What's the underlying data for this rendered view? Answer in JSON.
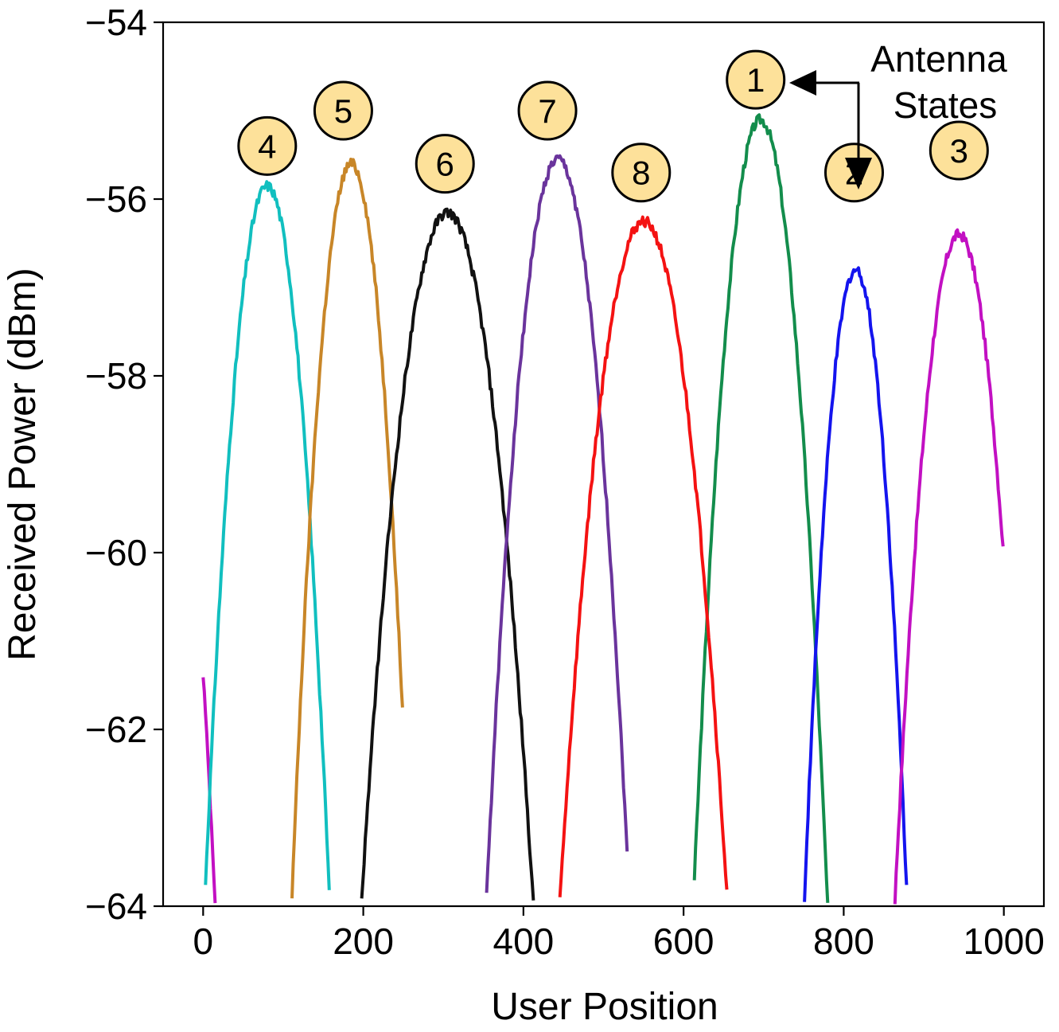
{
  "chart_data": {
    "type": "line",
    "xlabel": "User Position",
    "ylabel": "Received Power (dBm)",
    "xlim": [
      -50,
      1050
    ],
    "ylim": [
      -64,
      -54
    ],
    "xticks": [
      0,
      200,
      400,
      600,
      800,
      1000
    ],
    "yticks": [
      -54,
      -56,
      -58,
      -60,
      -62,
      -64
    ],
    "xtick_labels": [
      "0",
      "200",
      "400",
      "600",
      "800",
      "1000"
    ],
    "ytick_labels": [
      "−54",
      "−56",
      "−58",
      "−60",
      "−62",
      "−64"
    ],
    "grid": false,
    "annotation": {
      "line1": "Antenna",
      "line2": "States"
    },
    "series": [
      {
        "state": "1",
        "color": "#138d4c",
        "peak_x": 696,
        "peak_y": -55.1,
        "width": 82,
        "x_range": [
          600,
          790
        ]
      },
      {
        "state": "2",
        "color": "#1414ee",
        "peak_x": 815,
        "peak_y": -56.8,
        "width": 70,
        "x_range": [
          715,
          900
        ]
      },
      {
        "state": "3",
        "color": "#c210c2",
        "peak_x": 944,
        "peak_y": -56.4,
        "width": 85,
        "x_range": [
          840,
          1000
        ]
      },
      {
        "state": "3",
        "color": "#c210c2",
        "peak_x": -65,
        "peak_y": -56.4,
        "width": 85,
        "x_range": [
          0,
          30
        ]
      },
      {
        "state": "4",
        "color": "#11bfbf",
        "peak_x": 80,
        "peak_y": -55.85,
        "width": 80,
        "x_range": [
          0,
          160
        ]
      },
      {
        "state": "5",
        "color": "#c88628",
        "peak_x": 185,
        "peak_y": -55.6,
        "width": 75,
        "x_range": [
          90,
          250
        ]
      },
      {
        "state": "6",
        "color": "#111111",
        "peak_x": 305,
        "peak_y": -56.15,
        "width": 112,
        "x_range": [
          180,
          420
        ]
      },
      {
        "state": "7",
        "color": "#6a349c",
        "peak_x": 443,
        "peak_y": -55.55,
        "width": 90,
        "x_range": [
          330,
          530
        ]
      },
      {
        "state": "8",
        "color": "#f41212",
        "peak_x": 550,
        "peak_y": -56.25,
        "width": 110,
        "x_range": [
          420,
          670
        ]
      }
    ],
    "markers": [
      {
        "label": "1",
        "x": 690,
        "y": -54.65
      },
      {
        "label": "2",
        "x": 813,
        "y": -55.7
      },
      {
        "label": "3",
        "x": 944,
        "y": -55.45
      },
      {
        "label": "4",
        "x": 80,
        "y": -55.4
      },
      {
        "label": "5",
        "x": 175,
        "y": -55.0
      },
      {
        "label": "6",
        "x": 302,
        "y": -55.6
      },
      {
        "label": "7",
        "x": 430,
        "y": -55.0
      },
      {
        "label": "8",
        "x": 547,
        "y": -55.7
      }
    ]
  }
}
